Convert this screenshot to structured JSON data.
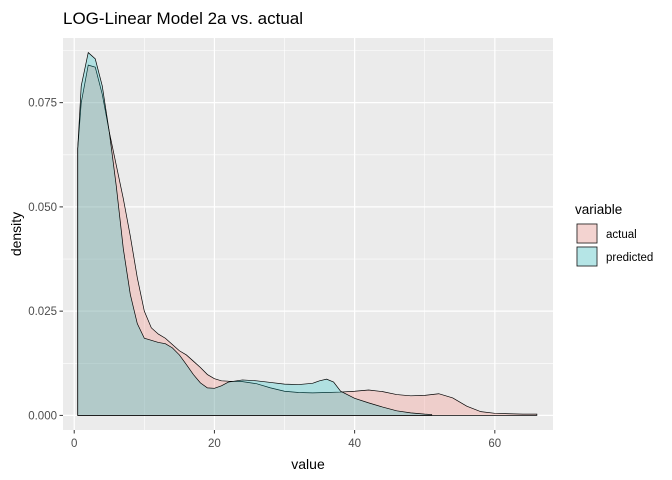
{
  "chart_data": {
    "type": "area",
    "subtype": "density",
    "title": "LOG-Linear Model 2a vs. actual",
    "xlabel": "value",
    "ylabel": "density",
    "xlim": [
      -1.6,
      68.3
    ],
    "ylim": [
      -0.0035,
      0.0905
    ],
    "x_ticks": [
      0,
      20,
      40,
      60
    ],
    "y_ticks": [
      0.0,
      0.025,
      0.05,
      0.075
    ],
    "x_tick_labels": [
      "0",
      "20",
      "40",
      "60"
    ],
    "y_tick_labels": [
      "0.000",
      "0.025",
      "0.050",
      "0.075"
    ],
    "grid": true,
    "legend": {
      "title": "variable",
      "position": "right"
    },
    "series": [
      {
        "name": "actual",
        "fill": "#F8766D",
        "x": [
          0.5,
          1,
          2,
          3,
          4,
          5,
          6,
          7,
          8,
          9,
          10,
          11,
          12,
          13,
          14,
          15,
          16,
          17,
          18,
          19,
          20,
          21,
          22,
          24,
          26,
          28,
          30,
          32,
          34,
          36,
          38,
          40,
          42,
          44,
          46,
          48,
          50,
          52,
          54,
          56,
          58,
          60,
          62,
          64,
          66
        ],
        "y": [
          0.064,
          0.075,
          0.084,
          0.0835,
          0.077,
          0.068,
          0.06,
          0.052,
          0.043,
          0.033,
          0.025,
          0.021,
          0.0195,
          0.0185,
          0.017,
          0.0155,
          0.0145,
          0.013,
          0.0115,
          0.0098,
          0.0088,
          0.0083,
          0.0082,
          0.0081,
          0.0076,
          0.0066,
          0.0058,
          0.0055,
          0.0054,
          0.0055,
          0.0056,
          0.0058,
          0.0061,
          0.0057,
          0.005,
          0.0047,
          0.0048,
          0.0052,
          0.0042,
          0.0022,
          0.0009,
          0.0005,
          0.0004,
          0.0003,
          0.0003
        ]
      },
      {
        "name": "predicted",
        "fill": "#00BFC4",
        "x": [
          0.5,
          1,
          2,
          3,
          4,
          5,
          6,
          7,
          8,
          9,
          10,
          11,
          12,
          13,
          14,
          15,
          16,
          17,
          18,
          19,
          20,
          21,
          22,
          24,
          26,
          28,
          30,
          32,
          34,
          35,
          36,
          37,
          38,
          40,
          42,
          44,
          46,
          48,
          50,
          51
        ],
        "y": [
          0.064,
          0.079,
          0.087,
          0.0855,
          0.079,
          0.068,
          0.055,
          0.04,
          0.029,
          0.022,
          0.0185,
          0.018,
          0.0175,
          0.0172,
          0.0162,
          0.0145,
          0.0122,
          0.0098,
          0.0078,
          0.0066,
          0.0065,
          0.0071,
          0.008,
          0.0085,
          0.0083,
          0.0079,
          0.0075,
          0.0074,
          0.0077,
          0.0083,
          0.0087,
          0.008,
          0.0058,
          0.0041,
          0.003,
          0.002,
          0.0011,
          0.0006,
          0.0003,
          0.0002
        ]
      }
    ]
  }
}
